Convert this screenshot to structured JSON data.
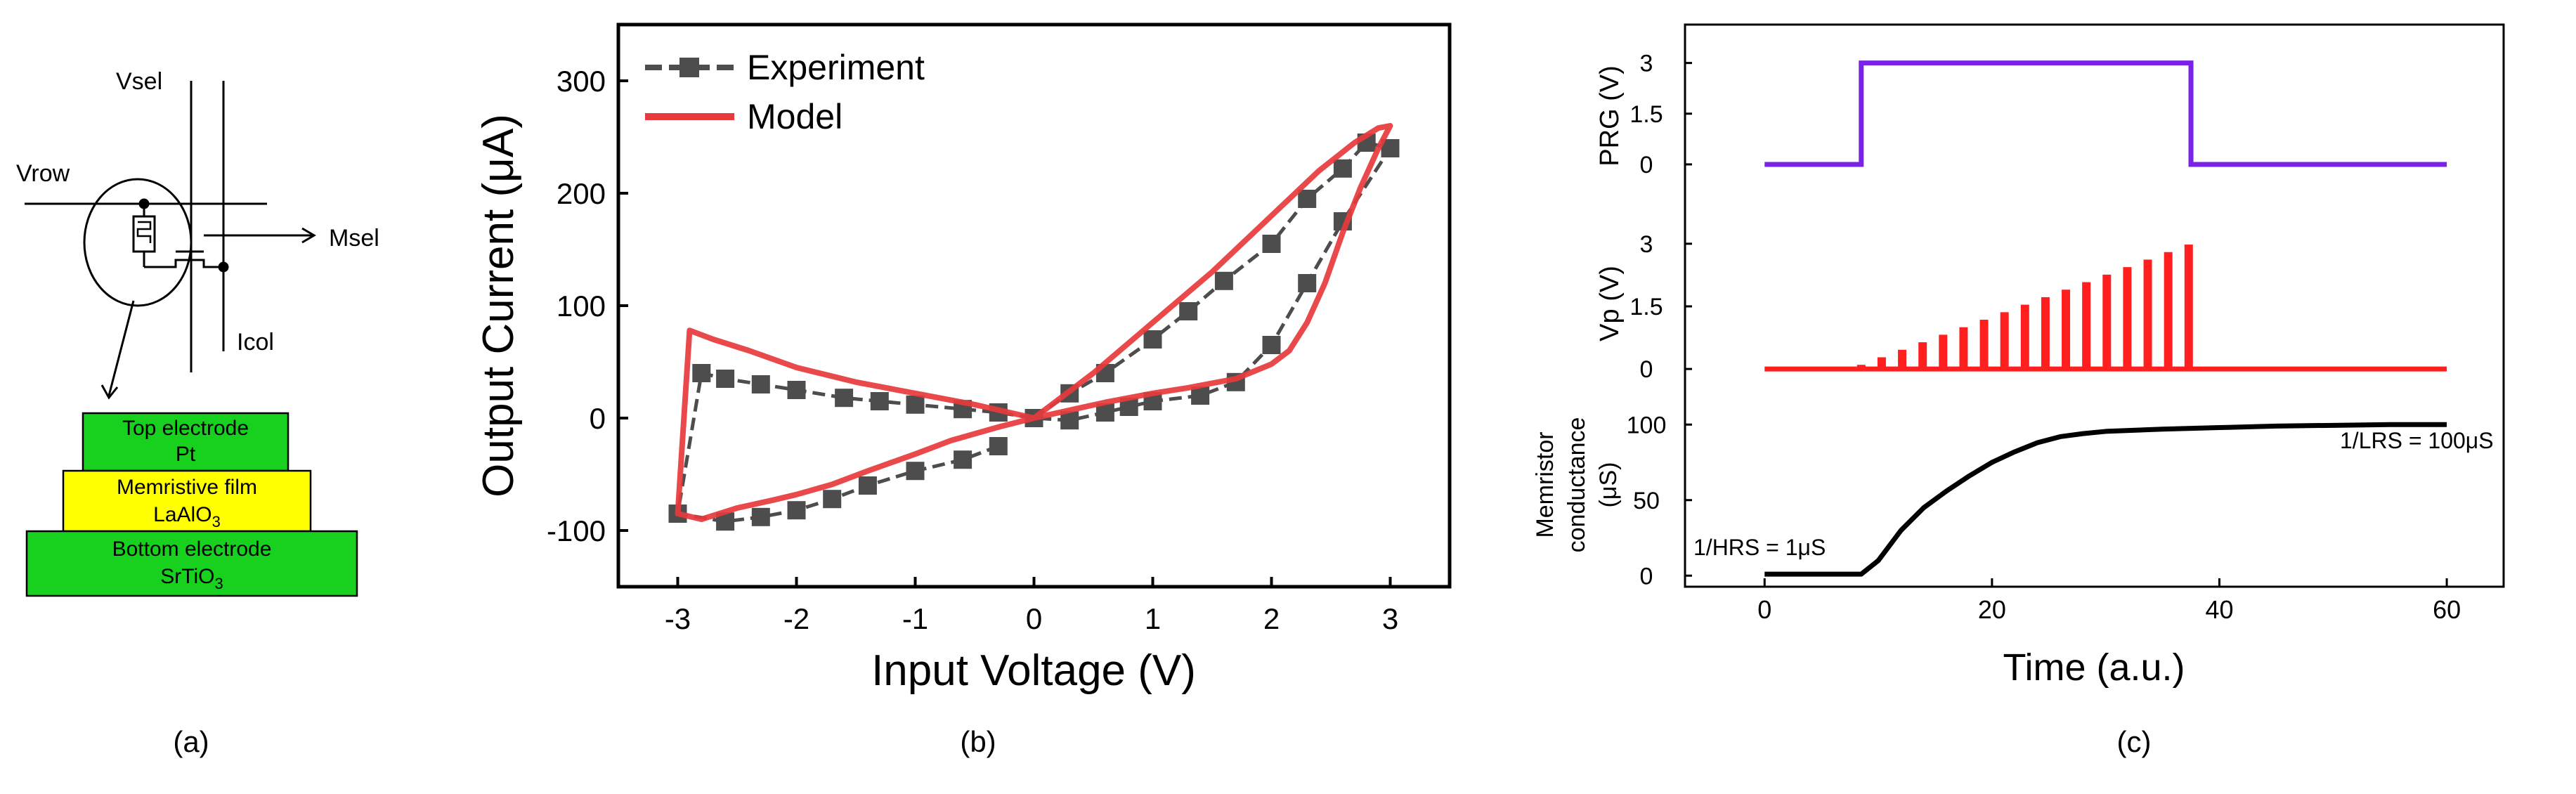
{
  "colors": {
    "experiment": "#4d4d4d",
    "model": "#e8393c",
    "prg": "#7a22e6",
    "vp": "#ff1f1f",
    "conductance": "#000000",
    "film_green": "#18d11e",
    "film_yellow": "#ffff00"
  },
  "panel_a": {
    "label": "(a)",
    "circuit": {
      "vsel": "Vsel",
      "vrow": "Vrow",
      "msel": "Msel",
      "icol": "Icol"
    },
    "stack": [
      {
        "line1": "Top electrode",
        "line2": "Pt",
        "sub": ""
      },
      {
        "line1": "Memristive film",
        "line2": "LaAlO",
        "sub": "3"
      },
      {
        "line1": "Bottom electrode",
        "line2": "SrTiO",
        "sub": "3"
      }
    ]
  },
  "chart_data": [
    {
      "panel": "(b)",
      "type": "line",
      "xlabel": "Input Voltage (V)",
      "ylabel": "Output Current (μA)",
      "xlim": [
        -3.5,
        3.5
      ],
      "ylim": [
        -150,
        350
      ],
      "xticks": [
        -3,
        -2,
        -1,
        0,
        1,
        2,
        3
      ],
      "yticks": [
        -100,
        0,
        100,
        200,
        300
      ],
      "legend": {
        "position": "top-left",
        "entries": [
          "Experiment",
          "Model"
        ]
      },
      "series": [
        {
          "name": "Experiment",
          "marker": "square",
          "dash": true,
          "x": [
            0,
            0.3,
            0.6,
            1.0,
            1.3,
            1.6,
            2.0,
            2.3,
            2.6,
            2.8,
            3.0,
            2.6,
            2.3,
            2.0,
            1.7,
            1.4,
            1.0,
            0.8,
            0.6,
            0.3,
            0,
            -0.3,
            -0.6,
            -1.0,
            -1.3,
            -1.6,
            -2.0,
            -2.3,
            -2.6,
            -2.8,
            -3.0,
            -2.6,
            -2.3,
            -2.0,
            -1.7,
            -1.4,
            -1.0,
            -0.6,
            -0.3
          ],
          "y": [
            0,
            22,
            40,
            70,
            95,
            122,
            155,
            195,
            222,
            245,
            240,
            175,
            120,
            65,
            32,
            20,
            15,
            10,
            5,
            -2,
            0,
            5,
            8,
            12,
            15,
            18,
            25,
            30,
            35,
            40,
            -85,
            -92,
            -88,
            -82,
            -72,
            -60,
            -47,
            -37,
            -25
          ]
        },
        {
          "name": "Model",
          "x": [
            0,
            0.5,
            1.0,
            1.5,
            2.0,
            2.4,
            2.7,
            2.9,
            3.0,
            2.9,
            2.75,
            2.6,
            2.45,
            2.3,
            2.15,
            2.0,
            1.7,
            1.3,
            1.0,
            0.6,
            0.3,
            0,
            -0.5,
            -1.0,
            -1.5,
            -2.0,
            -2.4,
            -2.7,
            -2.9,
            -3.0,
            -2.8,
            -2.5,
            -2.2,
            -2.0,
            -1.7,
            -1.4,
            -1.0,
            -0.7,
            -0.3,
            0
          ],
          "y": [
            0,
            40,
            85,
            130,
            180,
            220,
            245,
            258,
            260,
            240,
            205,
            165,
            120,
            85,
            60,
            48,
            35,
            27,
            22,
            14,
            7,
            0,
            12,
            22,
            32,
            45,
            60,
            70,
            78,
            -85,
            -90,
            -80,
            -73,
            -68,
            -59,
            -47,
            -32,
            -20,
            -8,
            0
          ]
        }
      ]
    },
    {
      "panel": "(c)",
      "type": "line",
      "xlabel": "Time (a.u.)",
      "xlim": [
        -7,
        65
      ],
      "xticks": [
        0,
        20,
        40,
        60
      ],
      "subplots": [
        {
          "name": "PRG",
          "ylabel": "PRG (V)",
          "ylim": [
            -0.5,
            3.2
          ],
          "yticks": [
            "0",
            "1.5",
            "3"
          ],
          "x": [
            0,
            8.5,
            8.5,
            37.5,
            37.5,
            60
          ],
          "y": [
            0,
            0,
            3,
            3,
            0,
            0
          ]
        },
        {
          "name": "Vp",
          "ylabel": "Vp (V)",
          "ylim": [
            -0.2,
            3.2
          ],
          "yticks": [
            "0",
            "1.5",
            "3"
          ],
          "baseline": {
            "x": [
              0,
              60
            ],
            "y": [
              0,
              0
            ]
          },
          "pulses": {
            "t": [
              8.5,
              10.3,
              12.1,
              13.9,
              15.7,
              17.5,
              19.3,
              21.1,
              22.9,
              24.7,
              26.5,
              28.3,
              30.1,
              31.9,
              33.7,
              35.5,
              37.3
            ],
            "v": [
              0.1,
              0.28,
              0.46,
              0.64,
              0.82,
              1.0,
              1.18,
              1.36,
              1.54,
              1.72,
              1.9,
              2.08,
              2.26,
              2.44,
              2.62,
              2.8,
              2.98
            ]
          }
        },
        {
          "name": "Memristor conductance",
          "ylabel_lines": [
            "Memristor",
            "conductance",
            "(μS)"
          ],
          "ylim": [
            -5,
            115
          ],
          "yticks": [
            "0",
            "50",
            "100"
          ],
          "x": [
            0,
            8.5,
            10,
            12,
            14,
            16,
            18,
            20,
            22,
            24,
            26,
            28,
            30,
            35,
            40,
            45,
            50,
            55,
            60
          ],
          "y": [
            1,
            1,
            10,
            30,
            45,
            56,
            66,
            75,
            82,
            88,
            92,
            94,
            95.5,
            97,
            98,
            99,
            99.5,
            100,
            100
          ]
        }
      ],
      "annotations": {
        "hrs": "1/HRS = 1μS",
        "lrs": "1/LRS = 100μS"
      }
    }
  ]
}
